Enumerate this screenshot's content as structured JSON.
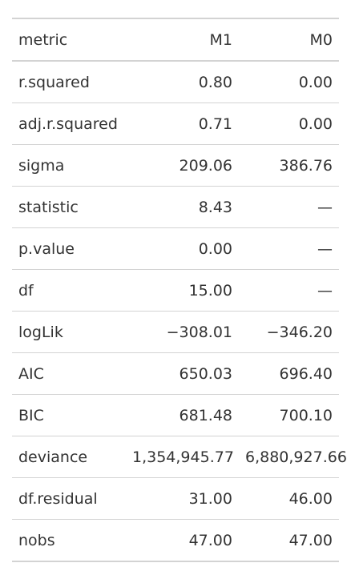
{
  "table": {
    "headers": [
      "metric",
      "M1",
      "M0"
    ],
    "rows": [
      {
        "metric": "r.squared",
        "M1": "0.80",
        "M0": "0.00"
      },
      {
        "metric": "adj.r.squared",
        "M1": "0.71",
        "M0": "0.00"
      },
      {
        "metric": "sigma",
        "M1": "209.06",
        "M0": "386.76"
      },
      {
        "metric": "statistic",
        "M1": "8.43",
        "M0": "—"
      },
      {
        "metric": "p.value",
        "M1": "0.00",
        "M0": "—"
      },
      {
        "metric": "df",
        "M1": "15.00",
        "M0": "—"
      },
      {
        "metric": "logLik",
        "M1": "−308.01",
        "M0": "−346.20"
      },
      {
        "metric": "AIC",
        "M1": "650.03",
        "M0": "696.40"
      },
      {
        "metric": "BIC",
        "M1": "681.48",
        "M0": "700.10"
      },
      {
        "metric": "deviance",
        "M1": "1,354,945.77",
        "M0": "6,880,927.66"
      },
      {
        "metric": "df.residual",
        "M1": "31.00",
        "M0": "46.00"
      },
      {
        "metric": "nobs",
        "M1": "47.00",
        "M0": "47.00"
      }
    ]
  }
}
